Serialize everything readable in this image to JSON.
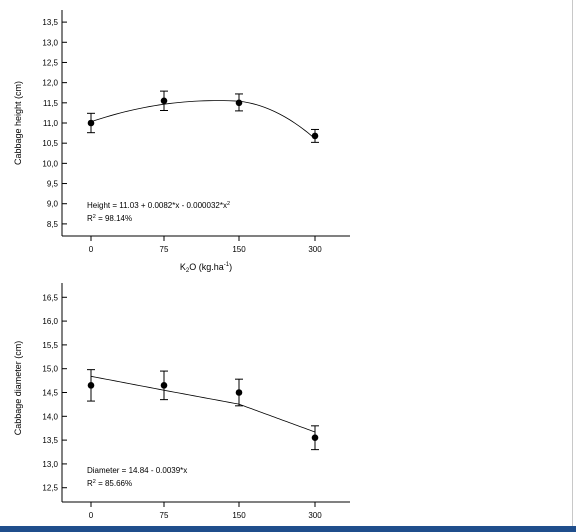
{
  "chart_data": [
    {
      "type": "scatter",
      "ylabel": "Cabbage height (cm)",
      "xlabel_main": "K",
      "xlabel_sub": "2",
      "xlabel_rest": "O (kg.ha",
      "xlabel_sup": "-1",
      "xlabel_end": ")",
      "categories": [
        "0",
        "75",
        "150",
        "300"
      ],
      "y_ticks": [
        "8,5",
        "9,0",
        "9,5",
        "10,0",
        "10,5",
        "11,0",
        "11,5",
        "12,0",
        "12,5",
        "13,0",
        "13,5"
      ],
      "ylim": [
        8.2,
        13.8
      ],
      "series": [
        {
          "values": [
            11.0,
            11.55,
            11.5,
            10.68
          ],
          "err_low": [
            10.76,
            11.31,
            11.3,
            10.52
          ],
          "err_high": [
            11.24,
            11.79,
            11.72,
            10.84
          ]
        }
      ],
      "fit": {
        "type": "quadratic",
        "a": 11.03,
        "b": 0.0082,
        "c": -3.2e-05
      },
      "equation_text": "Height = 11.03 + 0.0082*x - 0.000032*x",
      "equation_sup": "2",
      "r2_label": "R",
      "r2_sup": "2",
      "r2_text": " = 98.14%"
    },
    {
      "type": "scatter",
      "ylabel": "Cabbage diameter (cm)",
      "categories": [
        "0",
        "75",
        "150",
        "300"
      ],
      "y_ticks": [
        "12,5",
        "13,0",
        "13,5",
        "14,0",
        "14,5",
        "15,0",
        "15,5",
        "16,0",
        "16,5"
      ],
      "ylim": [
        12.2,
        16.8
      ],
      "series": [
        {
          "values": [
            14.65,
            14.65,
            14.5,
            13.55
          ],
          "err_low": [
            14.32,
            14.35,
            14.22,
            13.3
          ],
          "err_high": [
            14.98,
            14.95,
            14.78,
            13.8
          ]
        }
      ],
      "fit": {
        "type": "linear",
        "a": 14.84,
        "b": -0.0039
      },
      "equation_text": "Diameter = 14.84 - 0.0039*x",
      "r2_label": "R",
      "r2_sup": "2",
      "r2_text": " = 85.66%"
    }
  ]
}
